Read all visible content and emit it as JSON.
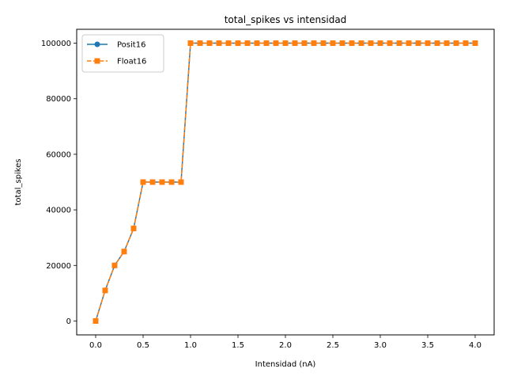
{
  "chart_data": {
    "type": "line",
    "title": "total_spikes vs intensidad",
    "xlabel": "Intensidad (nA)",
    "ylabel": "total_spikes",
    "xlim": [
      -0.2,
      4.2
    ],
    "ylim": [
      -5000,
      105000
    ],
    "xticks": [
      0.0,
      0.5,
      1.0,
      1.5,
      2.0,
      2.5,
      3.0,
      3.5,
      4.0
    ],
    "xtick_labels": [
      "0.0",
      "0.5",
      "1.0",
      "1.5",
      "2.0",
      "2.5",
      "3.0",
      "3.5",
      "4.0"
    ],
    "yticks": [
      0,
      20000,
      40000,
      60000,
      80000,
      100000
    ],
    "ytick_labels": [
      "0",
      "20000",
      "40000",
      "60000",
      "80000",
      "100000"
    ],
    "legend_position": "top-left",
    "grid": false,
    "x": [
      0.0,
      0.1,
      0.2,
      0.3,
      0.4,
      0.5,
      0.6,
      0.7,
      0.8,
      0.9,
      1.0,
      1.1,
      1.2,
      1.3,
      1.4,
      1.5,
      1.6,
      1.7,
      1.8,
      1.9,
      2.0,
      2.1,
      2.2,
      2.3,
      2.4,
      2.5,
      2.6,
      2.7,
      2.8,
      2.9,
      3.0,
      3.1,
      3.2,
      3.3,
      3.4,
      3.5,
      3.6,
      3.7,
      3.8,
      3.9,
      4.0
    ],
    "series": [
      {
        "name": "Posit16",
        "color": "#1f77b4",
        "marker": "circle",
        "linestyle": "solid",
        "values": [
          0,
          11000,
          20000,
          25000,
          33300,
          50000,
          50000,
          50000,
          50000,
          50000,
          100000,
          100000,
          100000,
          100000,
          100000,
          100000,
          100000,
          100000,
          100000,
          100000,
          100000,
          100000,
          100000,
          100000,
          100000,
          100000,
          100000,
          100000,
          100000,
          100000,
          100000,
          100000,
          100000,
          100000,
          100000,
          100000,
          100000,
          100000,
          100000,
          100000,
          100000
        ]
      },
      {
        "name": "Float16",
        "color": "#ff7f0e",
        "marker": "square",
        "linestyle": "dashed",
        "values": [
          0,
          11000,
          20000,
          25000,
          33300,
          50000,
          50000,
          50000,
          50000,
          50000,
          100000,
          100000,
          100000,
          100000,
          100000,
          100000,
          100000,
          100000,
          100000,
          100000,
          100000,
          100000,
          100000,
          100000,
          100000,
          100000,
          100000,
          100000,
          100000,
          100000,
          100000,
          100000,
          100000,
          100000,
          100000,
          100000,
          100000,
          100000,
          100000,
          100000,
          100000
        ]
      }
    ]
  }
}
